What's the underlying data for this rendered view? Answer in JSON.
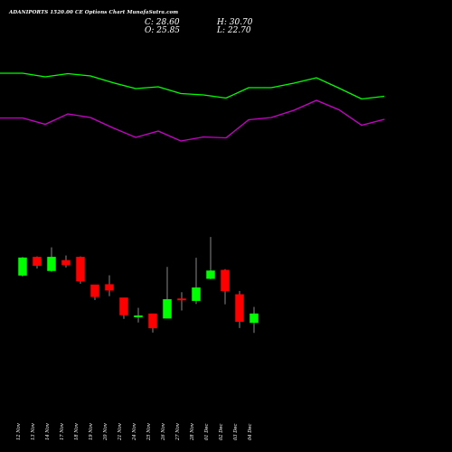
{
  "header": {
    "title": "ADANIPORTS 1520.00 CE Options Chart MunafaSutra.com",
    "close_label": "C: 28.60",
    "open_label": "O: 25.85",
    "high_label": "H: 30.70",
    "low_label": "L: 22.70"
  },
  "colors": {
    "background": "#000000",
    "up": "#00ff00",
    "down": "#ff0000",
    "upper_line": "#00ff00",
    "lower_line": "#cc00cc",
    "wick": "#888888",
    "text": "#ffffff"
  },
  "chart_data": {
    "type": "candlestick",
    "categories": [
      "12 Nov",
      "13 Nov",
      "14 Nov",
      "17 Nov",
      "18 Nov",
      "19 Nov",
      "20 Nov",
      "21 Nov",
      "24 Nov",
      "25 Nov",
      "26 Nov",
      "27 Nov",
      "28 Nov",
      "01 Dec",
      "02 Dec",
      "03 Dec",
      "04 Dec"
    ],
    "ohlc": [
      {
        "open": 40.4,
        "high": 46.0,
        "low": 40.0,
        "close": 45.8
      },
      {
        "open": 46.0,
        "high": 46.2,
        "low": 42.5,
        "close": 43.4
      },
      {
        "open": 41.8,
        "high": 49.0,
        "low": 41.5,
        "close": 46.0
      },
      {
        "open": 45.0,
        "high": 46.5,
        "low": 42.8,
        "close": 43.6
      },
      {
        "open": 46.0,
        "high": 46.2,
        "low": 37.8,
        "close": 38.6
      },
      {
        "open": 37.5,
        "high": 37.5,
        "low": 32.8,
        "close": 33.8
      },
      {
        "open": 37.6,
        "high": 40.4,
        "low": 34.0,
        "close": 35.8
      },
      {
        "open": 33.5,
        "high": 33.5,
        "low": 27.0,
        "close": 28.2
      },
      {
        "open": 27.6,
        "high": 30.4,
        "low": 25.9,
        "close": 28.0
      },
      {
        "open": 28.6,
        "high": 28.6,
        "low": 22.8,
        "close": 24.2
      },
      {
        "open": 27.2,
        "high": 43.0,
        "low": 27.2,
        "close": 33.0
      },
      {
        "open": 33.2,
        "high": 35.2,
        "low": 29.6,
        "close": 32.8
      },
      {
        "open": 32.6,
        "high": 45.8,
        "low": 31.6,
        "close": 36.6
      },
      {
        "open": 39.4,
        "high": 52.2,
        "low": 39.2,
        "close": 41.8
      },
      {
        "open": 42.0,
        "high": 42.3,
        "low": 31.5,
        "close": 35.6
      },
      {
        "open": 34.5,
        "high": 35.6,
        "low": 24.2,
        "close": 26.2
      },
      {
        "open": 25.85,
        "high": 30.7,
        "low": 22.7,
        "close": 28.6
      }
    ],
    "upper_band": [
      418,
      418,
      410,
      417,
      412,
      397,
      384,
      388,
      373,
      370,
      363,
      386,
      386,
      396,
      408,
      385,
      361,
      367
    ],
    "lower_band": [
      319,
      319,
      305,
      328,
      320,
      297,
      276,
      290,
      268,
      277,
      275,
      315,
      320,
      336,
      358,
      337,
      303,
      316
    ]
  }
}
